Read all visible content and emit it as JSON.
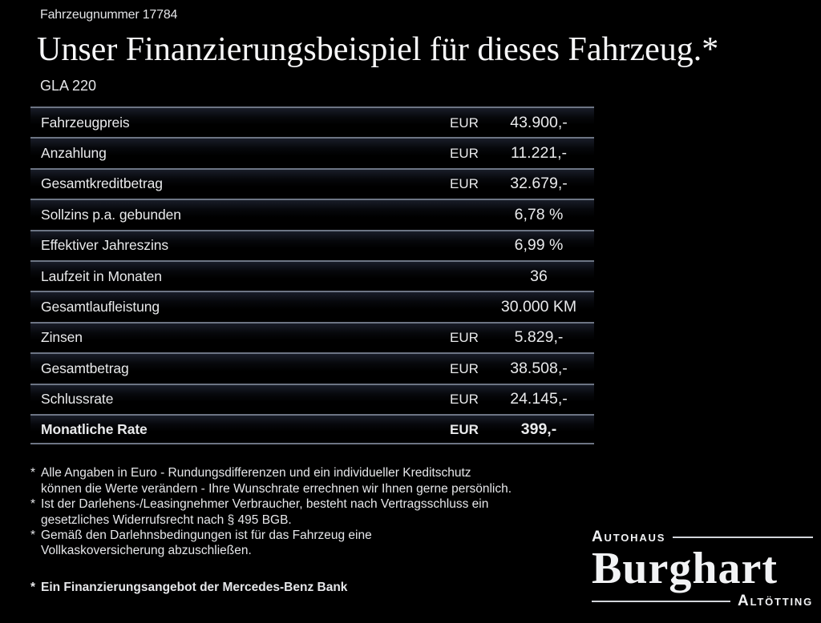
{
  "header": {
    "vehicle_number": "Fahrzeugnummer 17784",
    "title": "Unser Finanzierungsbeispiel für dieses Fahrzeug.*",
    "model": "GLA 220"
  },
  "table": {
    "rows": [
      {
        "label": "Fahrzeugpreis",
        "currency": "EUR",
        "value": "43.900,-",
        "bold": false
      },
      {
        "label": "Anzahlung",
        "currency": "EUR",
        "value": "11.221,-",
        "bold": false
      },
      {
        "label": "Gesamtkreditbetrag",
        "currency": "EUR",
        "value": "32.679,-",
        "bold": false
      },
      {
        "label": "Sollzins p.a. gebunden",
        "currency": "",
        "value": "6,78 %",
        "bold": false
      },
      {
        "label": "Effektiver Jahreszins",
        "currency": "",
        "value": "6,99 %",
        "bold": false
      },
      {
        "label": "Laufzeit in Monaten",
        "currency": "",
        "value": "36",
        "bold": false
      },
      {
        "label": "Gesamtlaufleistung",
        "currency": "",
        "value": "30.000 KM",
        "bold": false
      },
      {
        "label": "Zinsen",
        "currency": "EUR",
        "value": "5.829,-",
        "bold": false
      },
      {
        "label": "Gesamtbetrag",
        "currency": "EUR",
        "value": "38.508,-",
        "bold": false
      },
      {
        "label": "Schlussrate",
        "currency": "EUR",
        "value": "24.145,-",
        "bold": false
      },
      {
        "label": "Monatliche Rate",
        "currency": "EUR",
        "value": "399,-",
        "bold": true
      }
    ]
  },
  "footnotes": [
    {
      "marker": "*",
      "bold": false,
      "lines": [
        "Alle Angaben in Euro - Rundungsdifferenzen und ein individueller Kreditschutz",
        "können die Werte verändern - Ihre Wunschrate errechnen wir Ihnen gerne persönlich."
      ]
    },
    {
      "marker": "*",
      "bold": false,
      "lines": [
        "Ist der Darlehens-/Leasingnehmer Verbraucher, besteht nach Vertragsschluss ein",
        "gesetzliches Widerrufsrecht nach § 495 BGB."
      ]
    },
    {
      "marker": "*",
      "bold": false,
      "lines": [
        "Gemäß den Darlehnsbedingungen ist für das Fahrzeug eine",
        "Vollkaskoversicherung abzuschließen."
      ]
    },
    {
      "marker": "*",
      "bold": true,
      "lines": [
        "Ein Finanzierungsangebot der Mercedes-Benz Bank"
      ]
    }
  ],
  "logo": {
    "top_label": "Autohaus",
    "name": "Burghart",
    "bottom_label": "Altötting"
  },
  "colors": {
    "background": "#000000",
    "text": "#e9eaec",
    "separator": "#6d7584",
    "row_tint": "#3e4864",
    "logo_rule": "#d2d5da"
  }
}
